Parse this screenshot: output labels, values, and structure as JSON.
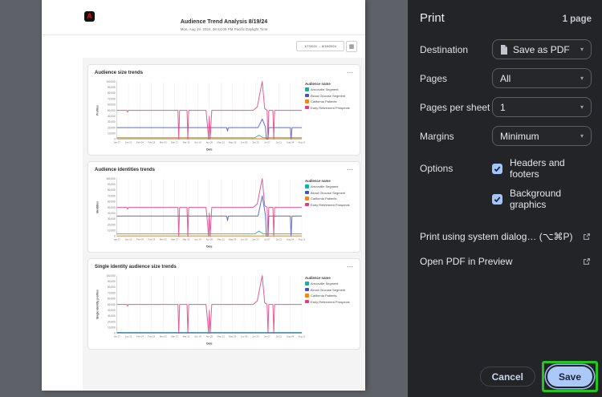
{
  "icons": {
    "caret": "▾",
    "calendar": "▦",
    "ellipsis": "⋯"
  },
  "preview": {
    "logo": "A",
    "title": "Audience Trend Analysis 8/19/24",
    "subtitle": "Mon, Aug 19, 2024, 06:44:09 PM Pacific Daylight Time",
    "date_range": {
      "text": "1/7/2024 → 8/18/2024"
    }
  },
  "chart_data": [
    {
      "type": "line",
      "title": "Audience size trends",
      "xlabel": "Date",
      "ylabel": "Profiles",
      "ylim": [
        0,
        100000
      ],
      "y_tick_step": 10000,
      "x_max": 224,
      "x_ticks": {
        "days": [
          0,
          14,
          28,
          42,
          56,
          70,
          84,
          98,
          112,
          126,
          140,
          154,
          168,
          182,
          196,
          210,
          224
        ],
        "labels": [
          "Jan 07",
          "Jan 21",
          "Feb 04",
          "Feb 18",
          "Mar 03",
          "Mar 17",
          "Mar 31",
          "Apr 14",
          "Apr 28",
          "May 12",
          "May 26",
          "Jun 09",
          "Jun 23",
          "Jul 07",
          "Jul 21",
          "Aug 04",
          "Aug 18"
        ]
      },
      "legend_title": "Audience name",
      "series": [
        {
          "name": "Arnoxville Segment",
          "color": "#10b3a3",
          "points": [
            [
              0,
              2500
            ],
            [
              167,
              2500
            ],
            [
              172,
              7000
            ],
            [
              177,
              2500
            ],
            [
              224,
              2500
            ]
          ]
        },
        {
          "name": "Blood Glucose Segment",
          "color": "#4250ce",
          "points": [
            [
              0,
              20000
            ],
            [
              133,
              20000
            ],
            [
              134,
              14000
            ],
            [
              135,
              20000
            ],
            [
              171,
              20000
            ],
            [
              176,
              35000
            ],
            [
              180,
              21000
            ],
            [
              181,
              0
            ],
            [
              183,
              0
            ],
            [
              184,
              20000
            ],
            [
              210,
              20000
            ],
            [
              211,
              0
            ],
            [
              212,
              20000
            ],
            [
              224,
              20000
            ]
          ]
        },
        {
          "name": "California Patients",
          "color": "#f68511",
          "points": [
            [
              0,
              900
            ],
            [
              224,
              900
            ]
          ]
        },
        {
          "name": "Early Retirement Prospects",
          "color": "#de3d82",
          "points": [
            [
              0,
              50000
            ],
            [
              12,
              50000
            ],
            [
              13,
              47000
            ],
            [
              14,
              50000
            ],
            [
              74,
              50000
            ],
            [
              75,
              0
            ],
            [
              76,
              50000
            ],
            [
              85,
              50000
            ],
            [
              86,
              0
            ],
            [
              87,
              50000
            ],
            [
              108,
              50000
            ],
            [
              110,
              20000
            ],
            [
              111,
              0
            ],
            [
              112,
              40000
            ],
            [
              113,
              0
            ],
            [
              115,
              50000
            ],
            [
              165,
              50000
            ],
            [
              170,
              56000
            ],
            [
              176,
              100000
            ],
            [
              179,
              53000
            ],
            [
              182,
              50000
            ],
            [
              183,
              0
            ],
            [
              184,
              50000
            ],
            [
              189,
              50000
            ],
            [
              190,
              0
            ],
            [
              191,
              50000
            ],
            [
              224,
              50000
            ]
          ]
        }
      ]
    },
    {
      "type": "line",
      "title": "Audience identities trends",
      "xlabel": "Date",
      "ylabel": "Identities",
      "ylim": [
        0,
        100000
      ],
      "y_tick_step": 10000,
      "x_max": 224,
      "x_ticks": {
        "days": [
          0,
          14,
          28,
          42,
          56,
          70,
          84,
          98,
          112,
          126,
          140,
          154,
          168,
          182,
          196,
          210,
          224
        ],
        "labels": [
          "Jan 07",
          "Jan 21",
          "Feb 04",
          "Feb 18",
          "Mar 03",
          "Mar 17",
          "Mar 31",
          "Apr 14",
          "Apr 28",
          "May 12",
          "May 26",
          "Jun 09",
          "Jun 23",
          "Jul 07",
          "Jul 21",
          "Aug 04",
          "Aug 18"
        ]
      },
      "legend_title": "Audience name",
      "series": [
        {
          "name": "Arnoxville Segment",
          "color": "#10b3a3",
          "points": [
            [
              0,
              4000
            ],
            [
              167,
              4000
            ],
            [
              172,
              9000
            ],
            [
              177,
              4000
            ],
            [
              224,
              4000
            ]
          ]
        },
        {
          "name": "Blood Glucose Segment",
          "color": "#4250ce",
          "points": [
            [
              0,
              35000
            ],
            [
              133,
              35000
            ],
            [
              134,
              27000
            ],
            [
              135,
              35000
            ],
            [
              171,
              35000
            ],
            [
              176,
              70000
            ],
            [
              180,
              36000
            ],
            [
              181,
              0
            ],
            [
              183,
              0
            ],
            [
              184,
              35000
            ],
            [
              210,
              35000
            ],
            [
              211,
              0
            ],
            [
              212,
              35000
            ],
            [
              224,
              35000
            ]
          ]
        },
        {
          "name": "California Patients",
          "color": "#f68511",
          "points": [
            [
              0,
              600
            ],
            [
              224,
              600
            ]
          ]
        },
        {
          "name": "Early Retirement Prospects",
          "color": "#de3d82",
          "points": [
            [
              0,
              50000
            ],
            [
              12,
              50000
            ],
            [
              13,
              47000
            ],
            [
              14,
              50000
            ],
            [
              74,
              50000
            ],
            [
              75,
              0
            ],
            [
              76,
              50000
            ],
            [
              85,
              50000
            ],
            [
              86,
              0
            ],
            [
              87,
              50000
            ],
            [
              108,
              50000
            ],
            [
              110,
              20000
            ],
            [
              111,
              0
            ],
            [
              112,
              40000
            ],
            [
              113,
              0
            ],
            [
              115,
              50000
            ],
            [
              165,
              50000
            ],
            [
              170,
              56000
            ],
            [
              176,
              100000
            ],
            [
              179,
              53000
            ],
            [
              182,
              50000
            ],
            [
              183,
              0
            ],
            [
              184,
              50000
            ],
            [
              189,
              50000
            ],
            [
              190,
              0
            ],
            [
              191,
              50000
            ],
            [
              224,
              50000
            ]
          ]
        }
      ]
    },
    {
      "type": "line",
      "title": "Single identity audience size trends",
      "xlabel": "Date",
      "ylabel": "Single identity profiles",
      "ylim": [
        0,
        100000
      ],
      "y_tick_step": 10000,
      "x_max": 224,
      "x_ticks": {
        "days": [
          0,
          14,
          28,
          42,
          56,
          70,
          84,
          98,
          112,
          126,
          140,
          154,
          168,
          182,
          196,
          210,
          224
        ],
        "labels": [
          "Jan 07",
          "Jan 21",
          "Feb 04",
          "Feb 18",
          "Mar 03",
          "Mar 17",
          "Mar 31",
          "Apr 14",
          "Apr 28",
          "May 12",
          "May 26",
          "Jun 09",
          "Jun 23",
          "Jul 07",
          "Jul 21",
          "Aug 04",
          "Aug 18"
        ]
      },
      "legend_title": "Audience name",
      "series": [
        {
          "name": "Arnoxville Segment",
          "color": "#10b3a3",
          "points": [
            [
              0,
              1500
            ],
            [
              224,
              1500
            ]
          ]
        },
        {
          "name": "Blood Glucose Segment",
          "color": "#4250ce",
          "points": [
            [
              0,
              700
            ],
            [
              224,
              700
            ]
          ]
        },
        {
          "name": "California Patients",
          "color": "#f68511",
          "points": [
            [
              0,
              300
            ],
            [
              224,
              300
            ]
          ]
        },
        {
          "name": "Early Retirement Prospects",
          "color": "#de3d82",
          "points": [
            [
              0,
              50000
            ],
            [
              12,
              50000
            ],
            [
              13,
              47000
            ],
            [
              14,
              50000
            ],
            [
              74,
              50000
            ],
            [
              75,
              0
            ],
            [
              76,
              50000
            ],
            [
              85,
              50000
            ],
            [
              86,
              0
            ],
            [
              87,
              50000
            ],
            [
              108,
              50000
            ],
            [
              110,
              20000
            ],
            [
              111,
              0
            ],
            [
              112,
              40000
            ],
            [
              113,
              0
            ],
            [
              115,
              50000
            ],
            [
              165,
              50000
            ],
            [
              170,
              56000
            ],
            [
              176,
              100000
            ],
            [
              179,
              53000
            ],
            [
              182,
              50000
            ],
            [
              183,
              0
            ],
            [
              184,
              50000
            ],
            [
              189,
              50000
            ],
            [
              190,
              0
            ],
            [
              191,
              50000
            ],
            [
              224,
              50000
            ]
          ]
        }
      ]
    }
  ],
  "print_panel": {
    "title": "Print",
    "page_count": "1 page",
    "fields": [
      {
        "label": "Destination",
        "value": "Save as PDF",
        "icon": "document-icon"
      },
      {
        "label": "Pages",
        "value": "All"
      },
      {
        "label": "Pages per sheet",
        "value": "1"
      },
      {
        "label": "Margins",
        "value": "Minimum"
      }
    ],
    "options_label": "Options",
    "options": [
      {
        "label": "Headers and footers",
        "checked": true
      },
      {
        "label": "Background graphics",
        "checked": true
      }
    ],
    "links": [
      {
        "label": "Print using system dialog… (⌥⌘P)"
      },
      {
        "label": "Open PDF in Preview"
      }
    ],
    "cancel_label": "Cancel",
    "save_label": "Save",
    "accent_color": "#abc8f7",
    "annotation_color": "#25c51d"
  }
}
